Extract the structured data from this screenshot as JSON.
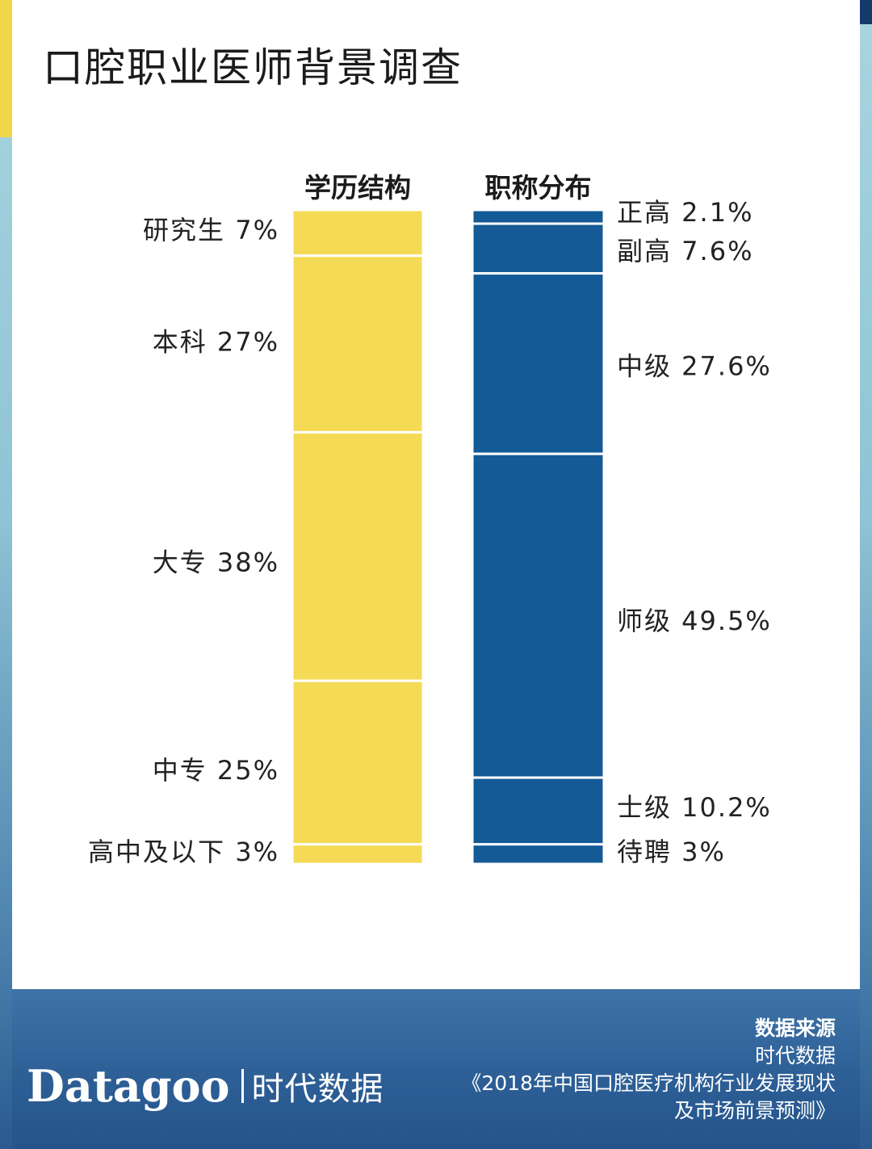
{
  "title": "口腔职业医师背景调查",
  "chart_data": {
    "type": "bar",
    "subtype": "stacked-100-percent",
    "title": "口腔职业医师背景调查",
    "series": [
      {
        "name": "学历结构",
        "color": "#f5da55",
        "segments": [
          {
            "label": "研究生 7%",
            "category": "研究生",
            "value": 7
          },
          {
            "label": "本科 27%",
            "category": "本科",
            "value": 27
          },
          {
            "label": "大专 38%",
            "category": "大专",
            "value": 38
          },
          {
            "label": "中专 25%",
            "category": "中专",
            "value": 25
          },
          {
            "label": "高中及以下 3%",
            "category": "高中及以下",
            "value": 3
          }
        ]
      },
      {
        "name": "职称分布",
        "color": "#145a96",
        "segments": [
          {
            "label": "正高 2.1%",
            "category": "正高",
            "value": 2.1
          },
          {
            "label": "副高 7.6%",
            "category": "副高",
            "value": 7.6
          },
          {
            "label": "中级 27.6%",
            "category": "中级",
            "value": 27.6
          },
          {
            "label": "师级 49.5%",
            "category": "师级",
            "value": 49.5
          },
          {
            "label": "士级 10.2%",
            "category": "士级",
            "value": 10.2
          },
          {
            "label": "待聘 3%",
            "category": "待聘",
            "value": 3
          }
        ]
      }
    ]
  },
  "footer": {
    "source_title": "数据来源",
    "source_org": "时代数据",
    "source_report_line1": "《2018年中国口腔医疗机构行业发展现状",
    "source_report_line2": "及市场前景预测》",
    "brand_en": "Datagoo",
    "brand_cn": "时代数据"
  },
  "colors": {
    "yellow": "#f5da55",
    "blue": "#145a96",
    "footer_blue": "#2d5f96"
  }
}
